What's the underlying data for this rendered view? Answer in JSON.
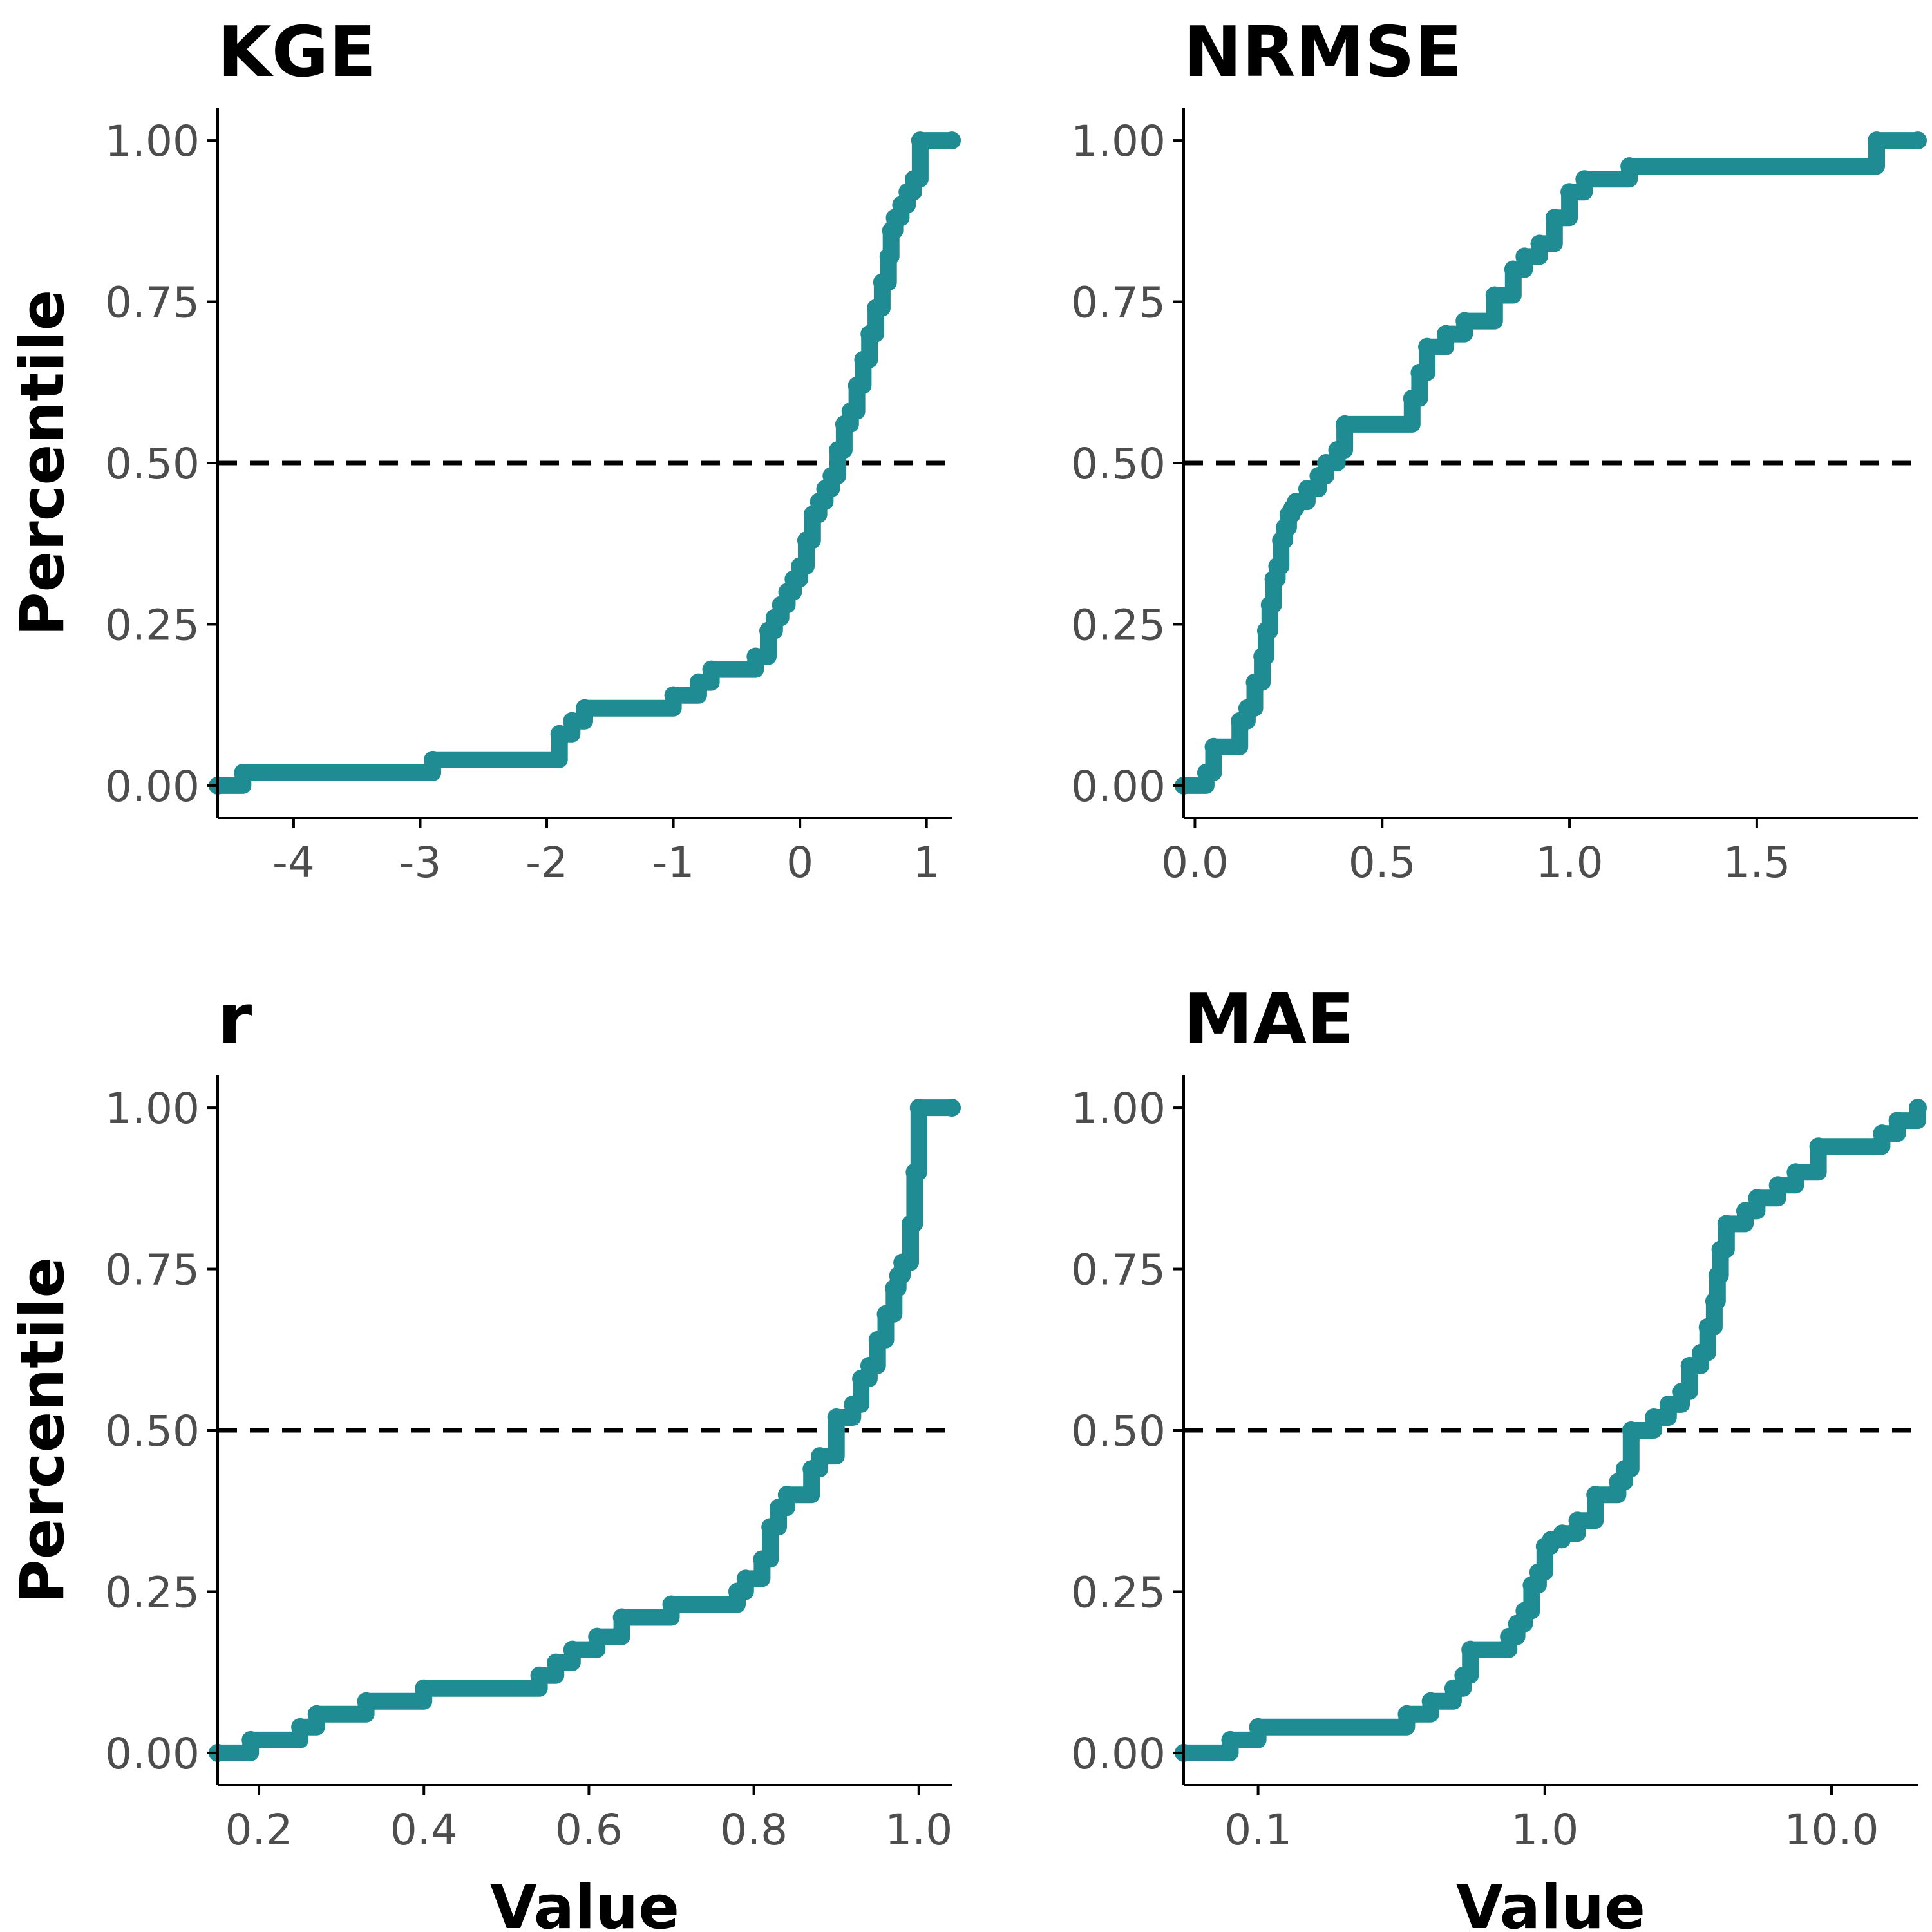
{
  "colors": {
    "line": "#1f8b93",
    "reference": "#000000",
    "axis": "#000000",
    "tick_text": "#4d4d4d",
    "background": "#ffffff"
  },
  "chart_data": [
    {
      "type": "line",
      "step": true,
      "title": "KGE",
      "xlabel": "",
      "ylabel": "Percentile",
      "xlim": [
        -4.6,
        1.2
      ],
      "ylim": [
        -0.05,
        1.05
      ],
      "xscale": "linear",
      "xticks": [
        -4,
        -3,
        -2,
        -1,
        0,
        1
      ],
      "xtick_labels": [
        "-4",
        "-3",
        "-2",
        "-1",
        "0",
        "1"
      ],
      "yticks": [
        0,
        0.25,
        0.5,
        0.75,
        1
      ],
      "ytick_labels": [
        "0.00",
        "0.25",
        "0.50",
        "0.75",
        "1.00"
      ],
      "reference_line": {
        "y": 0.5,
        "style": "dashed"
      },
      "grid": false,
      "legend": "none",
      "series": [
        {
          "x": [
            -4.6,
            -4.4,
            -2.9,
            -1.9,
            -1.8,
            -1.7,
            -1.0,
            -0.8,
            -0.7,
            -0.35,
            -0.25,
            -0.2,
            -0.15,
            -0.1,
            -0.05,
            0.0,
            0.05,
            0.1,
            0.15,
            0.2,
            0.25,
            0.3,
            0.35,
            0.4,
            0.45,
            0.5,
            0.55,
            0.6,
            0.65,
            0.7,
            0.72,
            0.75,
            0.8,
            0.85,
            0.9,
            0.95,
            1.2
          ],
          "y": [
            0.0,
            0.02,
            0.04,
            0.08,
            0.1,
            0.12,
            0.14,
            0.16,
            0.18,
            0.2,
            0.24,
            0.26,
            0.28,
            0.3,
            0.32,
            0.34,
            0.38,
            0.42,
            0.44,
            0.46,
            0.48,
            0.52,
            0.56,
            0.58,
            0.62,
            0.66,
            0.7,
            0.74,
            0.78,
            0.82,
            0.86,
            0.88,
            0.9,
            0.92,
            0.94,
            1.0,
            1.0
          ]
        }
      ]
    },
    {
      "type": "line",
      "step": true,
      "title": "NRMSE",
      "xlabel": "",
      "ylabel": "",
      "xlim": [
        -0.03,
        1.93
      ],
      "ylim": [
        -0.05,
        1.05
      ],
      "xscale": "linear",
      "xticks": [
        0,
        0.5,
        1,
        1.5
      ],
      "xtick_labels": [
        "0.0",
        "0.5",
        "1.0",
        "1.5"
      ],
      "yticks": [
        0,
        0.25,
        0.5,
        0.75,
        1
      ],
      "ytick_labels": [
        "0.00",
        "0.25",
        "0.50",
        "0.75",
        "1.00"
      ],
      "reference_line": {
        "y": 0.5,
        "style": "dashed"
      },
      "grid": false,
      "legend": "none",
      "series": [
        {
          "x": [
            -0.03,
            0.03,
            0.05,
            0.12,
            0.14,
            0.16,
            0.18,
            0.19,
            0.2,
            0.21,
            0.22,
            0.23,
            0.24,
            0.25,
            0.26,
            0.27,
            0.3,
            0.33,
            0.35,
            0.38,
            0.4,
            0.58,
            0.6,
            0.62,
            0.67,
            0.72,
            0.8,
            0.85,
            0.88,
            0.92,
            0.96,
            1.0,
            1.04,
            1.16,
            1.82,
            1.93
          ],
          "y": [
            0.0,
            0.02,
            0.06,
            0.1,
            0.12,
            0.16,
            0.2,
            0.24,
            0.28,
            0.32,
            0.34,
            0.38,
            0.4,
            0.42,
            0.43,
            0.44,
            0.46,
            0.48,
            0.5,
            0.52,
            0.56,
            0.6,
            0.64,
            0.68,
            0.7,
            0.72,
            0.76,
            0.8,
            0.82,
            0.84,
            0.88,
            0.92,
            0.94,
            0.96,
            1.0,
            1.0
          ]
        }
      ]
    },
    {
      "type": "line",
      "step": true,
      "title": "r",
      "xlabel": "Value",
      "ylabel": "Percentile",
      "xlim": [
        0.15,
        1.04
      ],
      "ylim": [
        -0.05,
        1.05
      ],
      "xscale": "linear",
      "xticks": [
        0.2,
        0.4,
        0.6,
        0.8,
        1.0
      ],
      "xtick_labels": [
        "0.2",
        "0.4",
        "0.6",
        "0.8",
        "1.0"
      ],
      "yticks": [
        0,
        0.25,
        0.5,
        0.75,
        1
      ],
      "ytick_labels": [
        "0.00",
        "0.25",
        "0.50",
        "0.75",
        "1.00"
      ],
      "reference_line": {
        "y": 0.5,
        "style": "dashed"
      },
      "grid": false,
      "legend": "none",
      "series": [
        {
          "x": [
            0.15,
            0.19,
            0.25,
            0.27,
            0.33,
            0.4,
            0.54,
            0.56,
            0.58,
            0.61,
            0.64,
            0.7,
            0.78,
            0.79,
            0.81,
            0.82,
            0.83,
            0.84,
            0.87,
            0.88,
            0.9,
            0.92,
            0.93,
            0.94,
            0.95,
            0.96,
            0.97,
            0.975,
            0.98,
            0.99,
            0.995,
            1.0,
            1.04
          ],
          "y": [
            0.0,
            0.02,
            0.04,
            0.06,
            0.08,
            0.1,
            0.12,
            0.14,
            0.16,
            0.18,
            0.21,
            0.23,
            0.25,
            0.27,
            0.3,
            0.35,
            0.38,
            0.4,
            0.44,
            0.46,
            0.52,
            0.54,
            0.58,
            0.6,
            0.64,
            0.68,
            0.72,
            0.74,
            0.76,
            0.82,
            0.9,
            1.0,
            1.0
          ]
        }
      ]
    },
    {
      "type": "line",
      "step": true,
      "title": "MAE",
      "xlabel": "Value",
      "ylabel": "",
      "xlim": [
        0.055,
        20
      ],
      "ylim": [
        -0.05,
        1.05
      ],
      "xscale": "log",
      "xticks": [
        0.1,
        1,
        10
      ],
      "xtick_labels": [
        "0.1",
        "1.0",
        "10.0"
      ],
      "yticks": [
        0,
        0.25,
        0.5,
        0.75,
        1
      ],
      "ytick_labels": [
        "0.00",
        "0.25",
        "0.50",
        "0.75",
        "1.00"
      ],
      "reference_line": {
        "y": 0.5,
        "style": "dashed"
      },
      "grid": false,
      "legend": "none",
      "series": [
        {
          "x": [
            0.055,
            0.08,
            0.1,
            0.33,
            0.4,
            0.48,
            0.52,
            0.55,
            0.75,
            0.8,
            0.85,
            0.9,
            0.95,
            1.0,
            1.05,
            1.15,
            1.3,
            1.5,
            1.8,
            1.9,
            2.0,
            2.4,
            2.7,
            3.0,
            3.2,
            3.5,
            3.7,
            3.9,
            4.0,
            4.1,
            4.3,
            5.0,
            5.5,
            6.5,
            7.5,
            9.0,
            15.0,
            17.0,
            20.0
          ],
          "y": [
            0.0,
            0.02,
            0.04,
            0.06,
            0.08,
            0.1,
            0.12,
            0.16,
            0.18,
            0.2,
            0.22,
            0.26,
            0.28,
            0.32,
            0.33,
            0.34,
            0.36,
            0.4,
            0.42,
            0.44,
            0.5,
            0.52,
            0.54,
            0.56,
            0.6,
            0.62,
            0.66,
            0.7,
            0.74,
            0.78,
            0.82,
            0.84,
            0.86,
            0.88,
            0.9,
            0.94,
            0.96,
            0.98,
            1.0
          ]
        }
      ]
    }
  ]
}
